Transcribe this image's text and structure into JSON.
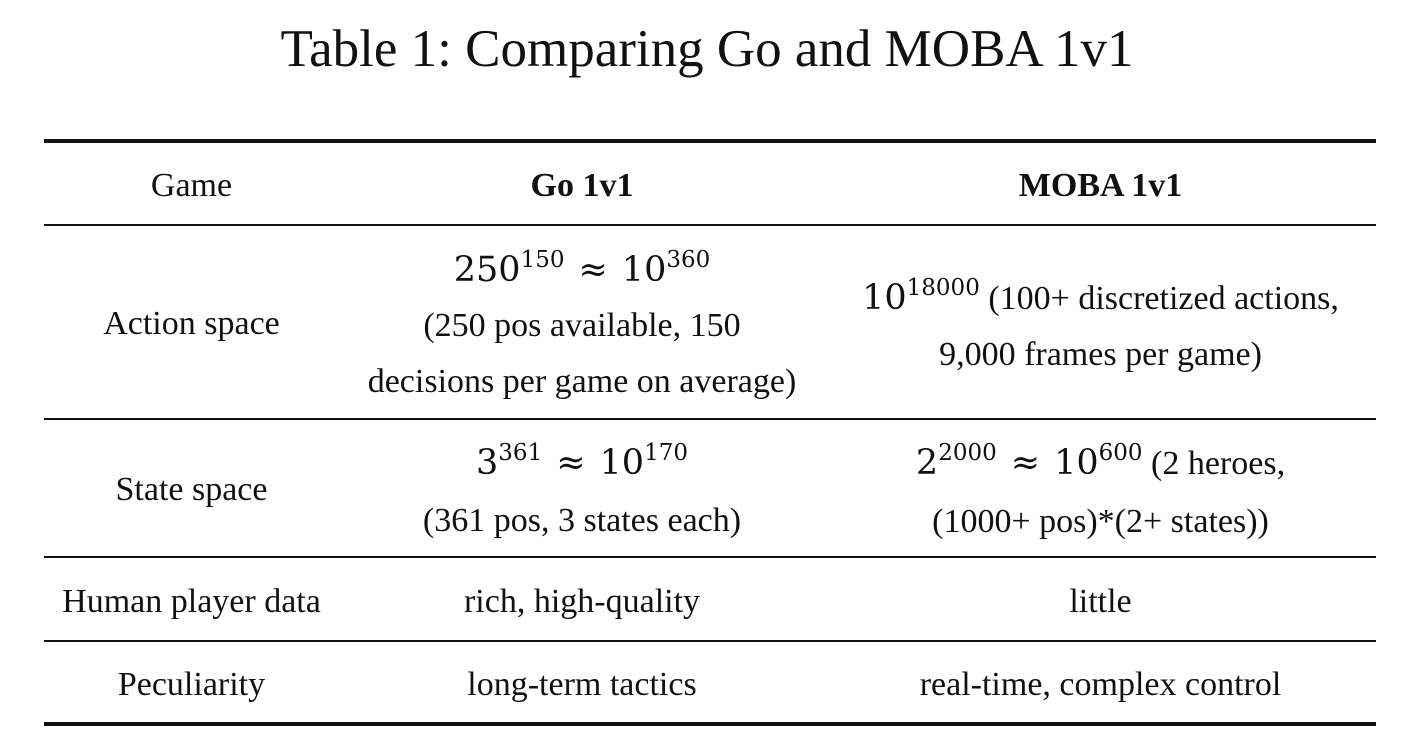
{
  "caption": "Table 1: Comparing Go and MOBA 1v1",
  "header": {
    "col1": "Game",
    "col2": "Go 1v1",
    "col3": "MOBA 1v1"
  },
  "rows": {
    "action_space": {
      "label": "Action space",
      "go": {
        "math": {
          "base1": "250",
          "exp1": "150",
          "rel": "≈",
          "base2": "10",
          "exp2": "360"
        },
        "line1": "(250 pos available, 150",
        "line2": "decisions per game on average)"
      },
      "moba": {
        "math": {
          "base1": "10",
          "exp1": "18000"
        },
        "text1": " (100+ discretized actions,",
        "line2": "9,000 frames per game)"
      }
    },
    "state_space": {
      "label": "State space",
      "go": {
        "math": {
          "base1": "3",
          "exp1": "361",
          "rel": "≈",
          "base2": "10",
          "exp2": "170"
        },
        "line1": "(361 pos, 3 states each)"
      },
      "moba": {
        "math": {
          "base1": "2",
          "exp1": "2000",
          "rel": "≈",
          "base2": "10",
          "exp2": "600"
        },
        "text1": " (2 heroes,",
        "line2": "(1000+ pos)*(2+ states))"
      }
    },
    "human_player_data": {
      "label": "Human player data",
      "go": "rich, high-quality",
      "moba": "little"
    },
    "peculiarity": {
      "label": "Peculiarity",
      "go": "long-term tactics",
      "moba": "real-time, complex control"
    }
  }
}
